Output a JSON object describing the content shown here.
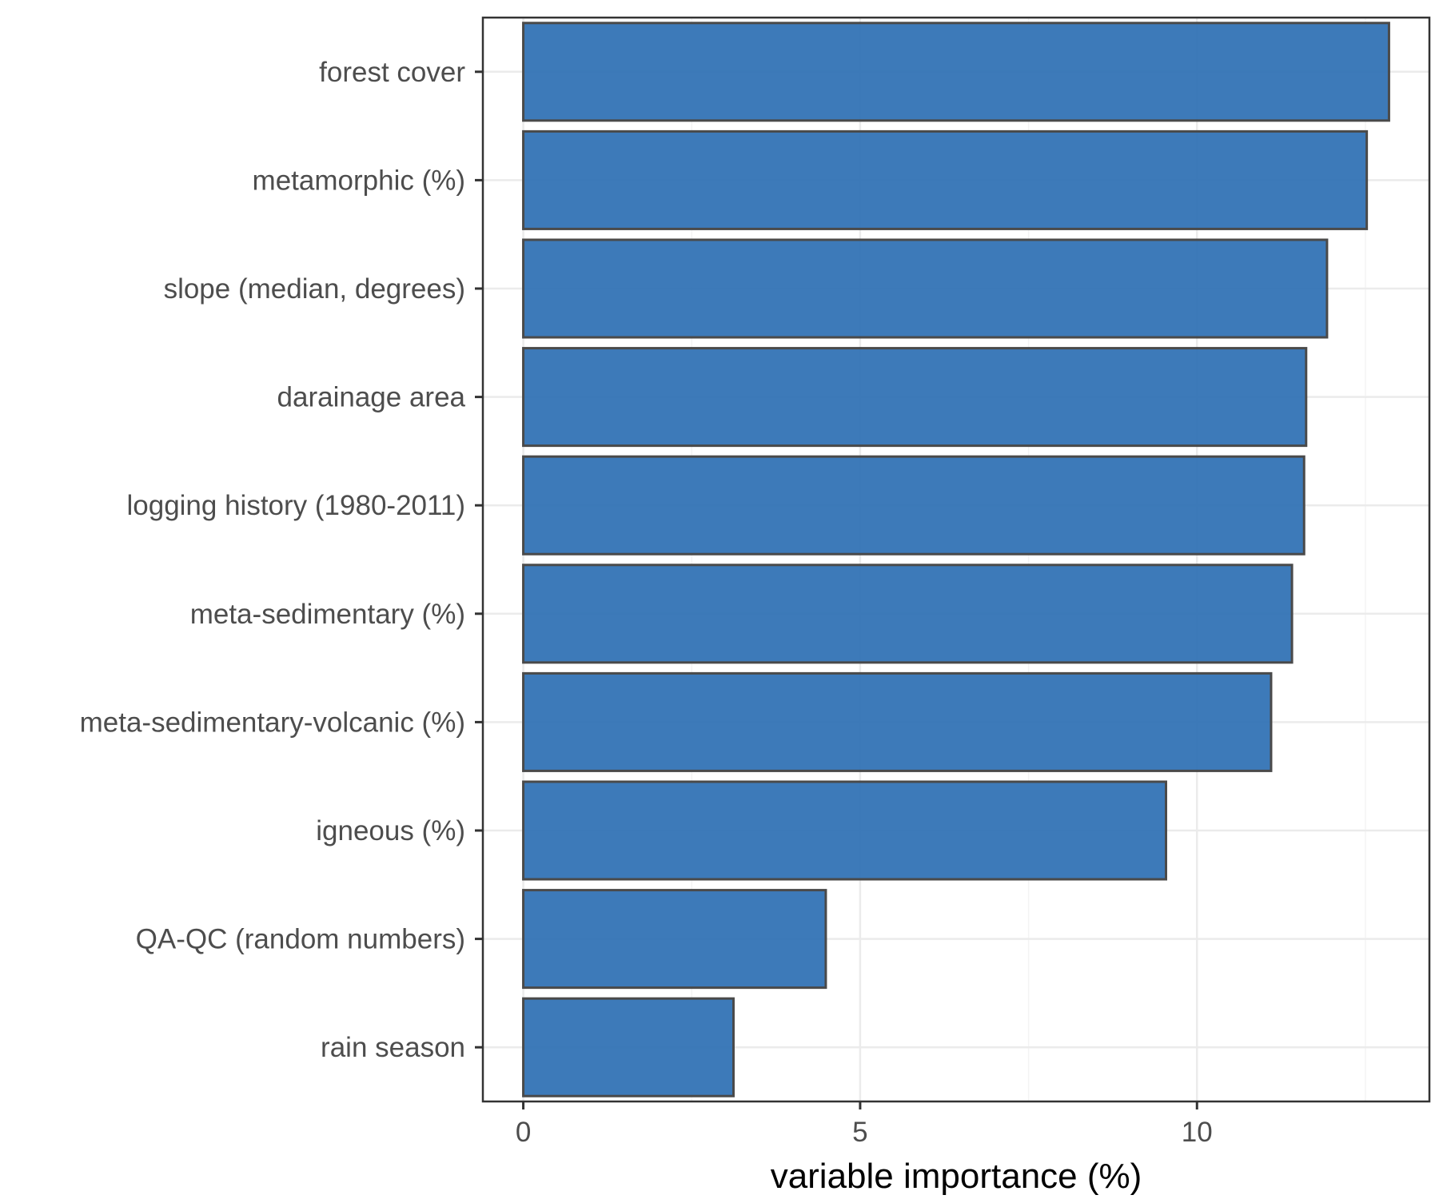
{
  "chart_data": {
    "type": "bar",
    "orientation": "horizontal",
    "categories": [
      "forest cover",
      "metamorphic (%)",
      "slope (median, degrees)",
      "darainage area",
      "logging history (1980-2011)",
      "meta-sedimentary (%)",
      "meta-sedimentary-volcanic (%)",
      "igneous (%)",
      "QA-QC (random numbers)",
      "rain season"
    ],
    "values": [
      12.85,
      12.52,
      11.93,
      11.62,
      11.59,
      11.41,
      11.1,
      9.54,
      4.49,
      3.12
    ],
    "title": "",
    "xlabel": "variable importance (%)",
    "ylabel": "",
    "xlim": [
      -0.6,
      13.45
    ],
    "x_ticks": [
      0,
      5,
      10
    ],
    "x_tick_labels": [
      "0",
      "5",
      "10"
    ],
    "grid": true,
    "legend": "none",
    "colors": {
      "bar_fill": "#2c6fb3",
      "bar_stroke": "#4a4a4a",
      "grid_major": "#ebebeb",
      "grid_minor": "#f4f4f4",
      "panel_border": "#333333"
    }
  }
}
